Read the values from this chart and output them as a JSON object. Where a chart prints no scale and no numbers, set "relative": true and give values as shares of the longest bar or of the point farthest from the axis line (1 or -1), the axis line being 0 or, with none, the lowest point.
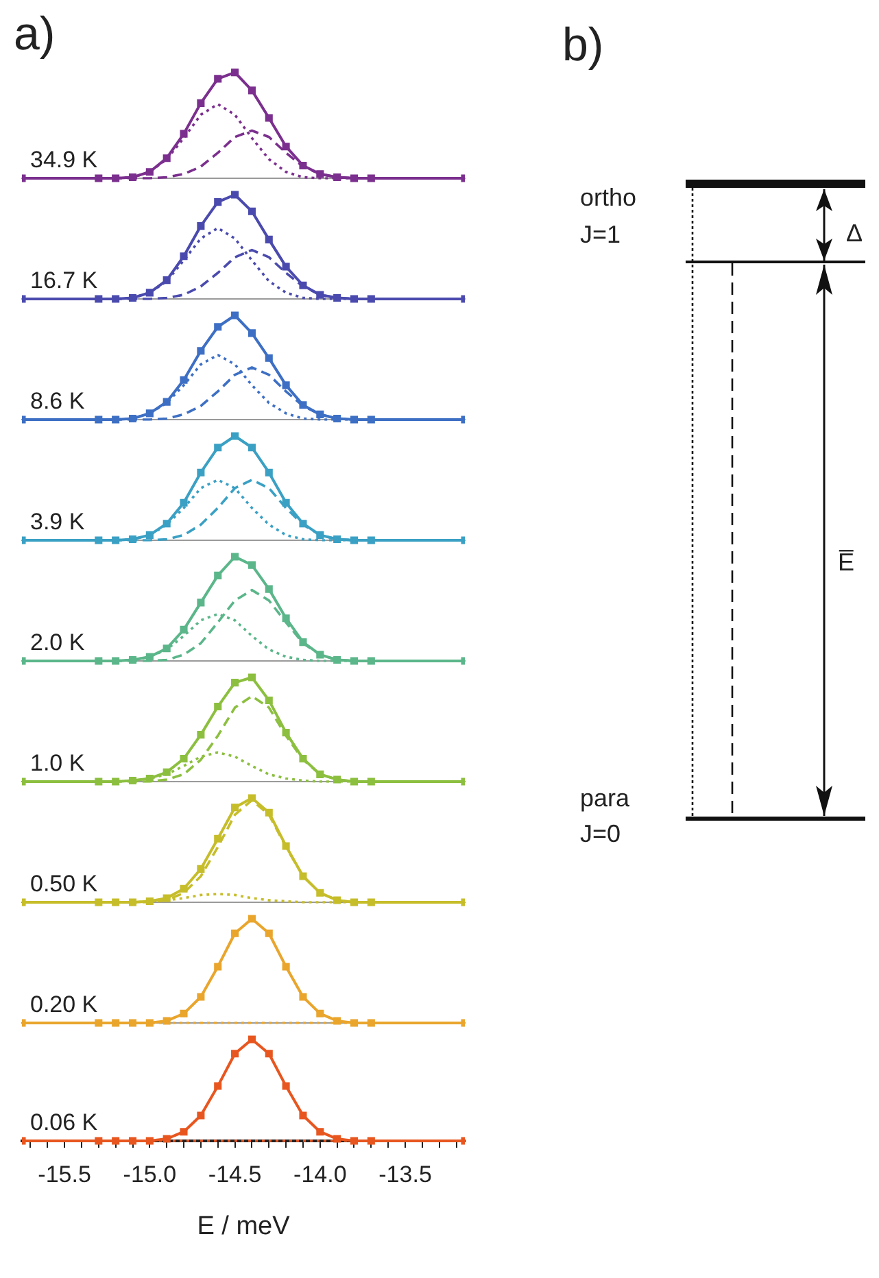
{
  "chart_data": [
    {
      "type": "line",
      "title": "a)",
      "relative": true,
      "tick_labels": false,
      "xlim": [
        -15.75,
        -13.15
      ],
      "annotations": [
        "34.9 K"
      ],
      "x": [
        -15.75,
        -15.3,
        -15.2,
        -15.1,
        -15.0,
        -14.9,
        -14.8,
        -14.7,
        -14.6,
        -14.5,
        -14.4,
        -14.3,
        -14.2,
        -14.1,
        -14.0,
        -13.9,
        -13.8,
        -13.7,
        -13.15
      ],
      "series": [
        {
          "color": "#7b2f8e",
          "marker": "square",
          "values": [
            0,
            0,
            0,
            0.01,
            0.06,
            0.19,
            0.42,
            0.71,
            0.94,
            1,
            0.83,
            0.57,
            0.3,
            0.12,
            0.04,
            0.01,
            0,
            0,
            0
          ]
        },
        {
          "color": "#7b2f8e",
          "marker": "none",
          "line_style": "dotted",
          "values": [
            0,
            0,
            0,
            0.01,
            0.06,
            0.18,
            0.38,
            0.6,
            0.7,
            0.6,
            0.38,
            0.18,
            0.06,
            0.01,
            0,
            0,
            0,
            0,
            0
          ]
        },
        {
          "color": "#7b2f8e",
          "marker": "none",
          "line_style": "dashed",
          "values": [
            0,
            0,
            0,
            0,
            0,
            0.01,
            0.04,
            0.11,
            0.24,
            0.39,
            0.45,
            0.39,
            0.24,
            0.11,
            0.04,
            0.01,
            0,
            0,
            0
          ]
        }
      ]
    },
    {
      "type": "line",
      "relative": true,
      "tick_labels": false,
      "xlim": [
        -15.75,
        -13.15
      ],
      "annotations": [
        "16.7 K"
      ],
      "x": [
        -15.75,
        -15.3,
        -15.2,
        -15.1,
        -15.0,
        -14.9,
        -14.8,
        -14.7,
        -14.6,
        -14.5,
        -14.4,
        -14.3,
        -14.2,
        -14.1,
        -14.0,
        -13.9,
        -13.8,
        -13.7,
        -13.15
      ],
      "series": [
        {
          "color": "#4a4aae",
          "marker": "square",
          "values": [
            0,
            0,
            0,
            0.01,
            0.06,
            0.18,
            0.41,
            0.7,
            0.93,
            1,
            0.84,
            0.57,
            0.31,
            0.13,
            0.04,
            0.01,
            0,
            0,
            0
          ]
        },
        {
          "color": "#4a4aae",
          "marker": "none",
          "line_style": "dotted",
          "values": [
            0,
            0,
            0,
            0.01,
            0.06,
            0.17,
            0.37,
            0.58,
            0.68,
            0.58,
            0.37,
            0.17,
            0.06,
            0.01,
            0,
            0,
            0,
            0,
            0
          ]
        },
        {
          "color": "#4a4aae",
          "marker": "none",
          "line_style": "dashed",
          "values": [
            0,
            0,
            0,
            0,
            0,
            0.01,
            0.04,
            0.12,
            0.25,
            0.4,
            0.47,
            0.4,
            0.25,
            0.12,
            0.04,
            0.01,
            0,
            0,
            0
          ]
        }
      ]
    },
    {
      "type": "line",
      "relative": true,
      "tick_labels": false,
      "xlim": [
        -15.75,
        -13.15
      ],
      "annotations": [
        "8.6 K"
      ],
      "x": [
        -15.75,
        -15.3,
        -15.2,
        -15.1,
        -15.0,
        -14.9,
        -14.8,
        -14.7,
        -14.6,
        -14.5,
        -14.4,
        -14.3,
        -14.2,
        -14.1,
        -14.0,
        -13.9,
        -13.8,
        -13.7,
        -13.15
      ],
      "series": [
        {
          "color": "#3d6fc4",
          "marker": "square",
          "values": [
            0,
            0,
            0,
            0.01,
            0.06,
            0.17,
            0.38,
            0.66,
            0.89,
            1,
            0.83,
            0.59,
            0.33,
            0.14,
            0.05,
            0.01,
            0,
            0,
            0
          ]
        },
        {
          "color": "#3d6fc4",
          "marker": "none",
          "line_style": "dotted",
          "values": [
            0,
            0,
            0,
            0.01,
            0.06,
            0.16,
            0.33,
            0.53,
            0.62,
            0.53,
            0.33,
            0.16,
            0.06,
            0.01,
            0,
            0,
            0,
            0,
            0
          ]
        },
        {
          "color": "#3d6fc4",
          "marker": "none",
          "line_style": "dashed",
          "values": [
            0,
            0,
            0,
            0,
            0,
            0.01,
            0.05,
            0.13,
            0.27,
            0.43,
            0.5,
            0.43,
            0.27,
            0.13,
            0.05,
            0.01,
            0,
            0,
            0
          ]
        }
      ]
    },
    {
      "type": "line",
      "relative": true,
      "tick_labels": false,
      "xlim": [
        -15.75,
        -13.15
      ],
      "annotations": [
        "3.9 K"
      ],
      "x": [
        -15.75,
        -15.3,
        -15.2,
        -15.1,
        -15.0,
        -14.9,
        -14.8,
        -14.7,
        -14.6,
        -14.5,
        -14.4,
        -14.3,
        -14.2,
        -14.1,
        -14.0,
        -13.9,
        -13.8,
        -13.7,
        -13.15
      ],
      "series": [
        {
          "color": "#3aa0c4",
          "marker": "square",
          "values": [
            0,
            0,
            0,
            0.01,
            0.05,
            0.16,
            0.36,
            0.65,
            0.89,
            1,
            0.89,
            0.65,
            0.36,
            0.16,
            0.05,
            0.01,
            0,
            0,
            0
          ]
        },
        {
          "color": "#3aa0c4",
          "marker": "none",
          "line_style": "dotted",
          "values": [
            0,
            0,
            0,
            0.01,
            0.05,
            0.15,
            0.31,
            0.5,
            0.58,
            0.5,
            0.31,
            0.15,
            0.05,
            0.01,
            0,
            0,
            0,
            0,
            0
          ]
        },
        {
          "color": "#3aa0c4",
          "marker": "none",
          "line_style": "dashed",
          "values": [
            0,
            0,
            0,
            0,
            0,
            0.01,
            0.05,
            0.15,
            0.31,
            0.5,
            0.58,
            0.5,
            0.31,
            0.15,
            0.05,
            0.01,
            0,
            0,
            0
          ]
        }
      ]
    },
    {
      "type": "line",
      "relative": true,
      "tick_labels": false,
      "xlim": [
        -15.75,
        -13.15
      ],
      "annotations": [
        "2.0 K"
      ],
      "x": [
        -15.75,
        -15.3,
        -15.2,
        -15.1,
        -15.0,
        -14.9,
        -14.8,
        -14.7,
        -14.6,
        -14.5,
        -14.4,
        -14.3,
        -14.2,
        -14.1,
        -14.0,
        -13.9,
        -13.8,
        -13.7,
        -13.15
      ],
      "series": [
        {
          "color": "#5bb68a",
          "marker": "square",
          "values": [
            0,
            0,
            0,
            0.01,
            0.04,
            0.12,
            0.3,
            0.56,
            0.82,
            1,
            0.92,
            0.69,
            0.41,
            0.18,
            0.06,
            0.01,
            0,
            0,
            0
          ]
        },
        {
          "color": "#5bb68a",
          "marker": "none",
          "line_style": "dotted",
          "values": [
            0,
            0,
            0,
            0.01,
            0.04,
            0.11,
            0.24,
            0.39,
            0.45,
            0.39,
            0.24,
            0.11,
            0.04,
            0.01,
            0,
            0,
            0,
            0,
            0
          ]
        },
        {
          "color": "#5bb68a",
          "marker": "none",
          "line_style": "dashed",
          "values": [
            0,
            0,
            0,
            0,
            0,
            0.01,
            0.06,
            0.17,
            0.37,
            0.58,
            0.68,
            0.58,
            0.37,
            0.17,
            0.06,
            0.01,
            0,
            0,
            0
          ]
        }
      ]
    },
    {
      "type": "line",
      "relative": true,
      "tick_labels": false,
      "xlim": [
        -15.75,
        -13.15
      ],
      "annotations": [
        "1.0 K"
      ],
      "x": [
        -15.75,
        -15.3,
        -15.2,
        -15.1,
        -15.0,
        -14.9,
        -14.8,
        -14.7,
        -14.6,
        -14.5,
        -14.4,
        -14.3,
        -14.2,
        -14.1,
        -14.0,
        -13.9,
        -13.8,
        -13.7,
        -13.15
      ],
      "series": [
        {
          "color": "#8cbf3f",
          "marker": "square",
          "values": [
            0,
            0,
            0,
            0.01,
            0.03,
            0.09,
            0.22,
            0.45,
            0.72,
            0.95,
            1,
            0.78,
            0.47,
            0.22,
            0.07,
            0.02,
            0,
            0,
            0
          ]
        },
        {
          "color": "#8cbf3f",
          "marker": "none",
          "line_style": "dotted",
          "values": [
            0,
            0,
            0,
            0.01,
            0.03,
            0.07,
            0.15,
            0.24,
            0.28,
            0.24,
            0.15,
            0.07,
            0.03,
            0.01,
            0,
            0,
            0,
            0,
            0
          ]
        },
        {
          "color": "#8cbf3f",
          "marker": "none",
          "line_style": "dashed",
          "values": [
            0,
            0,
            0,
            0,
            0,
            0.02,
            0.07,
            0.21,
            0.44,
            0.71,
            0.82,
            0.71,
            0.44,
            0.21,
            0.07,
            0.02,
            0,
            0,
            0
          ]
        }
      ]
    },
    {
      "type": "line",
      "relative": true,
      "tick_labels": false,
      "xlim": [
        -15.75,
        -13.15
      ],
      "annotations": [
        "0.50 K"
      ],
      "x": [
        -15.75,
        -15.3,
        -15.2,
        -15.1,
        -15.0,
        -14.9,
        -14.8,
        -14.7,
        -14.6,
        -14.5,
        -14.4,
        -14.3,
        -14.2,
        -14.1,
        -14.0,
        -13.9,
        -13.8,
        -13.7,
        -13.15
      ],
      "series": [
        {
          "color": "#c6bd2a",
          "marker": "square",
          "values": [
            0,
            0,
            0,
            0,
            0.01,
            0.04,
            0.13,
            0.32,
            0.61,
            0.91,
            1,
            0.86,
            0.54,
            0.25,
            0.09,
            0.02,
            0,
            0,
            0
          ]
        },
        {
          "color": "#c6bd2a",
          "marker": "none",
          "line_style": "dotted",
          "values": [
            0,
            0,
            0,
            0,
            0.01,
            0.02,
            0.04,
            0.07,
            0.08,
            0.07,
            0.04,
            0.02,
            0.01,
            0,
            0,
            0,
            0,
            0,
            0
          ]
        },
        {
          "color": "#c6bd2a",
          "marker": "none",
          "line_style": "dashed",
          "values": [
            0,
            0,
            0,
            0,
            0,
            0.02,
            0.09,
            0.25,
            0.53,
            0.84,
            0.98,
            0.84,
            0.53,
            0.25,
            0.09,
            0.02,
            0,
            0,
            0
          ]
        }
      ]
    },
    {
      "type": "line",
      "relative": true,
      "tick_labels": false,
      "xlim": [
        -15.75,
        -13.15
      ],
      "annotations": [
        "0.20 K"
      ],
      "x": [
        -15.75,
        -15.3,
        -15.2,
        -15.1,
        -15.0,
        -14.9,
        -14.8,
        -14.7,
        -14.6,
        -14.5,
        -14.4,
        -14.3,
        -14.2,
        -14.1,
        -14.0,
        -13.9,
        -13.8,
        -13.7,
        -13.15
      ],
      "series": [
        {
          "color": "#e9a52c",
          "marker": "square",
          "values": [
            0,
            0,
            0,
            0,
            0,
            0.02,
            0.09,
            0.25,
            0.54,
            0.86,
            1,
            0.86,
            0.54,
            0.25,
            0.09,
            0.02,
            0,
            0,
            0
          ]
        },
        {
          "color": "#e9a52c",
          "marker": "none",
          "line_style": "dotted",
          "values": [
            0,
            0,
            0,
            0,
            0,
            0,
            0,
            0,
            0,
            0,
            0,
            0,
            0,
            0,
            0,
            0,
            0,
            0,
            0
          ]
        }
      ]
    },
    {
      "type": "line",
      "relative": true,
      "tick_labels": "x",
      "xlim": [
        -15.75,
        -13.15
      ],
      "xlabel": "E / meV",
      "annotations": [
        "0.06 K"
      ],
      "xticks": [
        {
          "value": -15.7,
          "label": null
        },
        {
          "value": -15.6,
          "label": null
        },
        -15.5,
        {
          "value": -15.4,
          "label": null
        },
        {
          "value": -15.3,
          "label": null
        },
        {
          "value": -15.2,
          "label": null
        },
        {
          "value": -15.1,
          "label": null
        },
        {
          "value": -15,
          "label": "-15.0"
        },
        {
          "value": -14.9,
          "label": null
        },
        {
          "value": -14.8,
          "label": null
        },
        {
          "value": -14.7,
          "label": null
        },
        {
          "value": -14.6,
          "label": null
        },
        -14.5,
        {
          "value": -14.4,
          "label": null
        },
        {
          "value": -14.3,
          "label": null
        },
        {
          "value": -14.2,
          "label": null
        },
        {
          "value": -14.1,
          "label": null
        },
        {
          "value": -14,
          "label": "-14.0"
        },
        {
          "value": -13.9,
          "label": null
        },
        {
          "value": -13.8,
          "label": null
        },
        {
          "value": -13.7,
          "label": null
        },
        {
          "value": -13.6,
          "label": null
        },
        -13.5,
        {
          "value": -13.4,
          "label": null
        },
        {
          "value": -13.3,
          "label": null
        },
        {
          "value": -13.2,
          "label": null
        }
      ],
      "x": [
        -15.75,
        -15.3,
        -15.2,
        -15.1,
        -15.0,
        -14.9,
        -14.8,
        -14.7,
        -14.6,
        -14.5,
        -14.4,
        -14.3,
        -14.2,
        -14.1,
        -14.0,
        -13.9,
        -13.8,
        -13.7,
        -13.15
      ],
      "series": [
        {
          "color": "#e8561f",
          "marker": "square",
          "values": [
            0,
            0,
            0,
            0,
            0,
            0.02,
            0.09,
            0.25,
            0.54,
            0.86,
            1,
            0.86,
            0.54,
            0.25,
            0.09,
            0.02,
            0,
            0,
            0
          ]
        },
        {
          "color": "#e8561f",
          "marker": "none",
          "line_style": "dotted",
          "values": [
            0,
            0,
            0,
            0,
            0,
            0,
            0,
            0,
            0,
            0,
            0,
            0,
            0,
            0,
            0,
            0,
            0,
            0,
            0
          ]
        }
      ]
    },
    {
      "type": "other",
      "title": "b)",
      "annotations": [
        "ortho",
        "J=1",
        "Δ",
        "E̅",
        "para",
        "J=0"
      ]
    }
  ]
}
